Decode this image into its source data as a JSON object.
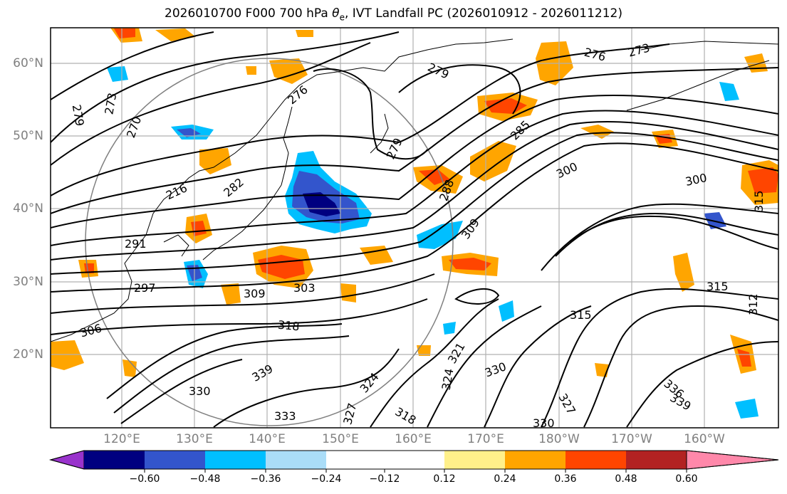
{
  "title_main": "2026010700 F000 700 hPa ",
  "title_symbol": "θ",
  "title_sub": "e",
  "title_rest": ", IVT Landfall PC (2026010912 - 2026011212)",
  "lat_labels": [
    "60°N",
    "50°N",
    "40°N",
    "30°N",
    "20°N"
  ],
  "lon_labels": [
    "120°E",
    "130°E",
    "140°E",
    "150°E",
    "160°E",
    "170°E",
    "180°W",
    "170°W",
    "160°W"
  ],
  "contour_labels": [
    "279",
    "273",
    "270",
    "276",
    "279",
    "276",
    "273",
    "279",
    "285",
    "300",
    "300",
    "216",
    "282",
    "288",
    "309",
    "291",
    "297",
    "309",
    "303",
    "318",
    "306",
    "339",
    "324",
    "330",
    "321",
    "324",
    "327",
    "315",
    "315",
    "312",
    "315",
    "336",
    "339",
    "330",
    "327",
    "330",
    "318",
    "333"
  ],
  "colorbar": {
    "ticks": [
      "−0.60",
      "−0.48",
      "−0.36",
      "−0.24",
      "−0.12",
      "0.12",
      "0.24",
      "0.36",
      "0.48",
      "0.60"
    ],
    "colors": {
      "under": "#9933cc",
      "n060": "#000080",
      "n048": "#3355cc",
      "n036": "#00bfff",
      "n024": "#aaddf8",
      "zero": "#ffffff",
      "p012": "#fff08a",
      "p024": "#ffa500",
      "p036": "#ff4500",
      "p048": "#b22222",
      "over": "#ff88aa"
    }
  }
}
